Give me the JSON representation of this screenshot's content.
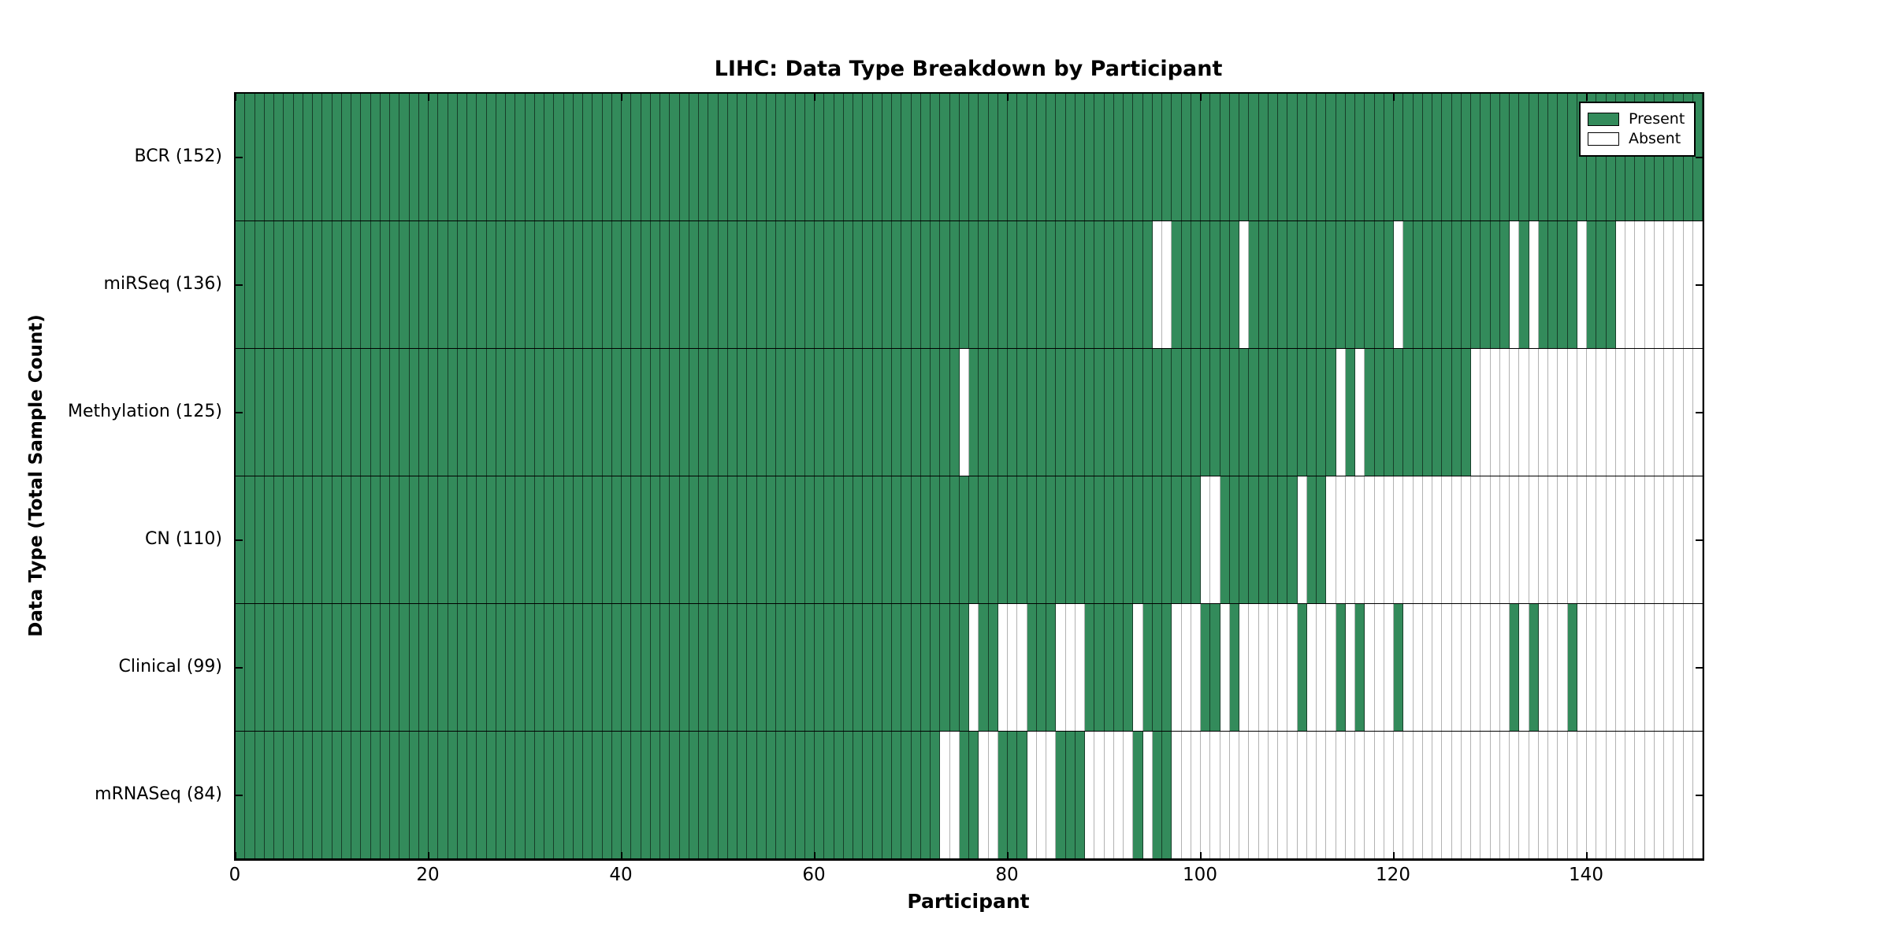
{
  "title": "LIHC: Data Type Breakdown by Participant",
  "axes": {
    "xlabel": "Participant",
    "ylabel": "Data Type (Total Sample Count)"
  },
  "legend": {
    "present_label": "Present",
    "absent_label": "Absent"
  },
  "colors": {
    "present": "#338b5b",
    "absent": "#ffffff",
    "axis": "#000000"
  },
  "chart_data": {
    "type": "heatmap",
    "title": "LIHC: Data Type Breakdown by Participant",
    "xlabel": "Participant",
    "ylabel": "Data Type (Total Sample Count)",
    "xlim": [
      0,
      152
    ],
    "n_participants": 152,
    "x_ticks": [
      0,
      20,
      40,
      60,
      80,
      100,
      120,
      140
    ],
    "grid": false,
    "legend_position": "upper right",
    "legend_entries": [
      {
        "label": "Present",
        "color": "#338b5b"
      },
      {
        "label": "Absent",
        "color": "#ffffff"
      }
    ],
    "rows": [
      {
        "label": "BCR (152)",
        "data_type": "BCR",
        "present_count": 152,
        "absent_participants": []
      },
      {
        "label": "miRSeq (136)",
        "data_type": "miRSeq",
        "present_count": 136,
        "absent_participants": [
          95,
          96,
          104,
          120,
          132,
          134,
          139,
          143,
          144,
          145,
          146,
          147,
          148,
          149,
          150,
          151
        ]
      },
      {
        "label": "Methylation (125)",
        "data_type": "Methylation",
        "present_count": 125,
        "absent_participants": [
          75,
          114,
          116,
          128,
          129,
          130,
          131,
          132,
          133,
          134,
          135,
          136,
          137,
          138,
          139,
          140,
          141,
          142,
          143,
          144,
          145,
          146,
          147,
          148,
          149,
          150,
          151
        ]
      },
      {
        "label": "CN (110)",
        "data_type": "CN",
        "present_count": 110,
        "absent_participants": [
          100,
          101,
          110,
          113,
          114,
          115,
          116,
          117,
          118,
          119,
          120,
          121,
          122,
          123,
          124,
          125,
          126,
          127,
          128,
          129,
          130,
          131,
          132,
          133,
          134,
          135,
          136,
          137,
          138,
          139,
          140,
          141,
          142,
          143,
          144,
          145,
          146,
          147,
          148,
          149,
          150,
          151
        ]
      },
      {
        "label": "Clinical (99)",
        "data_type": "Clinical",
        "present_count": 99,
        "absent_participants": [
          76,
          79,
          80,
          81,
          85,
          86,
          87,
          93,
          97,
          98,
          99,
          102,
          104,
          105,
          106,
          107,
          108,
          109,
          111,
          112,
          113,
          115,
          117,
          118,
          119,
          121,
          122,
          123,
          124,
          125,
          126,
          127,
          128,
          129,
          130,
          131,
          133,
          135,
          136,
          137,
          139,
          140,
          141,
          142,
          143,
          144,
          145,
          146,
          147,
          148,
          149,
          150,
          151
        ]
      },
      {
        "label": "mRNASeq (84)",
        "data_type": "mRNASeq",
        "present_count": 84,
        "absent_participants": [
          73,
          74,
          77,
          78,
          82,
          83,
          84,
          88,
          89,
          90,
          91,
          92,
          94,
          97,
          98,
          99,
          100,
          101,
          102,
          103,
          104,
          105,
          106,
          107,
          108,
          109,
          110,
          111,
          112,
          113,
          114,
          115,
          116,
          117,
          118,
          119,
          120,
          121,
          122,
          123,
          124,
          125,
          126,
          127,
          128,
          129,
          130,
          131,
          132,
          133,
          134,
          135,
          136,
          137,
          138,
          139,
          140,
          141,
          142,
          143,
          144,
          145,
          146,
          147,
          148,
          149,
          150,
          151
        ]
      }
    ]
  }
}
